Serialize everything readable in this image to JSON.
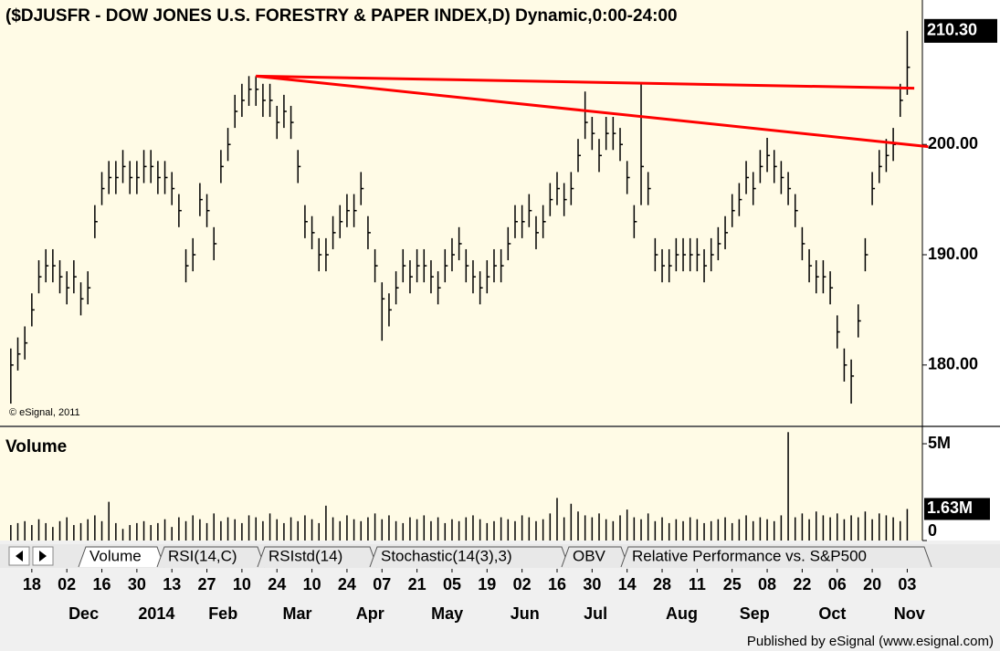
{
  "chart_data": [
    {
      "type": "ohlc",
      "title": "($DJUSFR - DOW JONES U.S. FORESTRY & PAPER INDEX,D) Dynamic,0:00-24:00",
      "watermark": "© eSignal, 2011",
      "color": "#000000",
      "high": [
        181.5,
        182.5,
        183.5,
        186.5,
        189.5,
        190.5,
        190.5,
        189.5,
        188.5,
        189.5,
        187.5,
        188.5,
        194.5,
        197.5,
        198.5,
        198.5,
        199.5,
        198.5,
        198.5,
        199.5,
        199.5,
        198.5,
        198.5,
        197.5,
        195.5,
        190.5,
        191.5,
        196.5,
        195.5,
        192.5,
        199.5,
        201.5,
        204.5,
        205.5,
        206.2,
        206.2,
        205.5,
        205.5,
        203.5,
        204.5,
        203.5,
        199.5,
        194.5,
        193.5,
        191.5,
        191.5,
        193.5,
        194.5,
        195.5,
        195.5,
        197.5,
        193.5,
        190.5,
        187.5,
        186.5,
        188.5,
        190.5,
        189.5,
        190.5,
        190.5,
        189.5,
        188.5,
        190.5,
        191.5,
        192.5,
        190.5,
        189.5,
        188.5,
        189.5,
        190.5,
        190.5,
        192.5,
        194.5,
        194.5,
        195.5,
        193.5,
        194.5,
        196.5,
        197.5,
        196.5,
        197.5,
        200.5,
        204.8,
        202.5,
        200.5,
        202.5,
        202.5,
        201.5,
        198.5,
        194.5,
        205.6,
        197.5,
        191.5,
        190.5,
        190.5,
        191.5,
        191.5,
        191.5,
        191.5,
        190.5,
        191.5,
        192.5,
        193.5,
        195.5,
        196.5,
        198.5,
        197.5,
        199.5,
        200.6,
        199.5,
        198.5,
        197.5,
        195.5,
        192.5,
        190.5,
        189.5,
        189.5,
        188.5,
        184.5,
        181.5,
        180.5,
        185.5,
        191.5,
        197.5,
        199.5,
        200.5,
        201.5,
        205.5,
        210.3
      ],
      "low": [
        176.5,
        179.5,
        180.5,
        183.5,
        186.5,
        187.5,
        187.5,
        186.5,
        185.5,
        186.5,
        184.5,
        185.5,
        191.5,
        194.5,
        195.5,
        195.5,
        196.5,
        195.5,
        195.5,
        196.5,
        196.5,
        195.5,
        195.5,
        194.5,
        192.5,
        187.5,
        188.5,
        193.5,
        192.5,
        189.5,
        196.5,
        198.5,
        201.5,
        202.5,
        203.5,
        203.5,
        202.5,
        202.5,
        200.5,
        201.5,
        200.5,
        196.5,
        191.5,
        190.5,
        188.5,
        188.5,
        190.5,
        191.5,
        192.5,
        192.5,
        194.5,
        190.5,
        187.5,
        182.2,
        183.5,
        185.5,
        187.5,
        186.5,
        187.5,
        187.5,
        186.5,
        185.5,
        187.5,
        188.5,
        189.5,
        187.5,
        186.5,
        185.5,
        186.5,
        187.5,
        187.5,
        189.5,
        191.5,
        191.5,
        192.5,
        190.5,
        191.5,
        193.5,
        194.5,
        193.5,
        194.5,
        197.5,
        200.5,
        199.5,
        197.5,
        199.5,
        199.5,
        198.5,
        195.5,
        191.5,
        194.5,
        194.5,
        188.5,
        187.5,
        187.5,
        188.5,
        188.5,
        188.5,
        188.5,
        187.5,
        188.5,
        189.5,
        190.5,
        192.5,
        193.5,
        195.5,
        194.5,
        196.5,
        197.5,
        196.5,
        195.5,
        194.5,
        192.5,
        189.5,
        187.5,
        186.5,
        186.5,
        185.5,
        181.5,
        178.5,
        176.5,
        182.5,
        188.5,
        194.5,
        196.5,
        197.5,
        198.5,
        202.5,
        204.5
      ],
      "close": [
        180,
        181,
        182,
        185,
        188,
        189,
        189,
        188,
        187,
        188,
        186,
        187,
        193,
        196,
        197,
        197,
        198,
        197,
        197,
        198,
        198,
        197,
        197,
        196,
        194,
        189,
        190,
        195,
        194,
        191,
        198,
        200,
        203,
        204,
        205,
        205,
        204,
        204,
        202,
        203,
        202,
        198,
        193,
        192,
        190,
        190,
        192,
        193,
        194,
        194,
        196,
        192,
        189,
        186,
        185,
        187,
        189,
        188,
        189,
        189,
        188,
        187,
        189,
        190,
        191,
        189,
        188,
        187,
        188,
        189,
        189,
        191,
        193,
        193,
        194,
        192,
        193,
        195,
        196,
        195,
        196,
        199,
        202,
        201,
        199,
        201,
        201,
        200,
        197,
        193,
        198,
        196,
        190,
        189,
        189,
        190,
        190,
        190,
        190,
        189,
        190,
        191,
        192,
        194,
        195,
        197,
        196,
        198,
        199,
        198,
        197,
        196,
        194,
        191,
        189,
        188,
        188,
        187,
        183,
        180,
        179,
        184,
        190,
        196,
        198,
        199,
        200,
        204,
        207
      ],
      "xlim": [
        -0.5,
        129.9
      ],
      "ylim": [
        174.6,
        213.1
      ],
      "yticks": [
        {
          "value": 180,
          "label": "180.00"
        },
        {
          "value": 190,
          "label": "190.00"
        },
        {
          "value": 200,
          "label": "200.00"
        }
      ],
      "last_price": {
        "value": 210.3,
        "label": "210.30"
      },
      "trendlines": [
        {
          "color": "#ff0000",
          "start": [
            35,
            206.2
          ],
          "end": [
            129,
            205.1
          ]
        },
        {
          "color": "#ff0000",
          "start": [
            35,
            206.2
          ],
          "end": [
            131,
            199.8
          ]
        }
      ],
      "xticks": [
        {
          "value": 3,
          "label": "18"
        },
        {
          "value": 8,
          "label": "02"
        },
        {
          "value": 13,
          "label": "16"
        },
        {
          "value": 18,
          "label": "30"
        },
        {
          "value": 23,
          "label": "13"
        },
        {
          "value": 28,
          "label": "27"
        },
        {
          "value": 33,
          "label": "10"
        },
        {
          "value": 38,
          "label": "24"
        },
        {
          "value": 43,
          "label": "10"
        },
        {
          "value": 48,
          "label": "24"
        },
        {
          "value": 53,
          "label": "07"
        },
        {
          "value": 58,
          "label": "21"
        },
        {
          "value": 63,
          "label": "05"
        },
        {
          "value": 68,
          "label": "19"
        },
        {
          "value": 73,
          "label": "02"
        },
        {
          "value": 78,
          "label": "16"
        },
        {
          "value": 83,
          "label": "30"
        },
        {
          "value": 88,
          "label": "14"
        },
        {
          "value": 93,
          "label": "28"
        },
        {
          "value": 98,
          "label": "11"
        },
        {
          "value": 103,
          "label": "25"
        },
        {
          "value": 108,
          "label": "08"
        },
        {
          "value": 113,
          "label": "22"
        },
        {
          "value": 118,
          "label": "06"
        },
        {
          "value": 123,
          "label": "20"
        },
        {
          "value": 128,
          "label": "03"
        }
      ],
      "month_labels": [
        {
          "value": 10.4,
          "label": "Dec"
        },
        {
          "value": 20.8,
          "label": "2014"
        },
        {
          "value": 30.3,
          "label": "Feb"
        },
        {
          "value": 40.9,
          "label": "Mar"
        },
        {
          "value": 51.3,
          "label": "Apr"
        },
        {
          "value": 62.3,
          "label": "May"
        },
        {
          "value": 73.4,
          "label": "Jun"
        },
        {
          "value": 83.5,
          "label": "Jul"
        },
        {
          "value": 95.8,
          "label": "Aug"
        },
        {
          "value": 106.2,
          "label": "Sep"
        },
        {
          "value": 117.3,
          "label": "Oct"
        },
        {
          "value": 128.3,
          "label": "Nov"
        }
      ]
    },
    {
      "type": "bar",
      "title": "Volume",
      "color": "#000000",
      "values": [
        0.8,
        0.9,
        1.0,
        0.8,
        1.1,
        0.9,
        0.7,
        1.0,
        1.2,
        0.8,
        0.9,
        1.1,
        1.3,
        1.0,
        2.0,
        0.9,
        0.6,
        0.8,
        0.9,
        1.0,
        0.8,
        0.9,
        1.1,
        0.7,
        1.2,
        1.0,
        1.3,
        1.1,
        0.9,
        1.4,
        1.0,
        1.2,
        1.1,
        0.9,
        1.3,
        1.2,
        1.0,
        1.4,
        1.1,
        0.9,
        1.2,
        1.0,
        1.3,
        1.1,
        0.9,
        1.8,
        1.2,
        1.0,
        1.3,
        1.1,
        1.0,
        1.2,
        1.4,
        1.1,
        1.3,
        1.0,
        0.9,
        1.2,
        1.1,
        1.3,
        1.0,
        1.2,
        0.9,
        1.1,
        1.0,
        1.2,
        1.3,
        1.1,
        0.9,
        1.0,
        1.2,
        1.1,
        1.0,
        1.3,
        1.2,
        1.0,
        1.1,
        1.4,
        2.2,
        1.2,
        1.9,
        1.5,
        1.3,
        1.2,
        1.4,
        1.1,
        1.0,
        1.3,
        1.6,
        1.2,
        1.1,
        1.4,
        1.0,
        1.2,
        0.9,
        1.1,
        1.0,
        1.2,
        1.1,
        0.9,
        1.0,
        1.1,
        1.2,
        0.9,
        1.1,
        1.3,
        1.0,
        1.2,
        1.1,
        1.0,
        1.3,
        5.6,
        1.2,
        1.4,
        1.1,
        1.5,
        1.3,
        1.2,
        1.4,
        1.1,
        1.3,
        1.2,
        1.5,
        1.1,
        1.4,
        1.3,
        1.2,
        1.0,
        1.63
      ],
      "xlim": [
        -0.5,
        129.9
      ],
      "ylim": [
        0,
        5.85
      ],
      "yticks": [
        {
          "value": 5,
          "label": "5M"
        },
        0
      ],
      "last_value": {
        "value": 1.63,
        "label": "1.63M"
      }
    }
  ],
  "tabs": [
    "Volume",
    "RSI(14,C)",
    "RSIstd(14)",
    "Stochastic(14(3),3)",
    "OBV",
    "Relative Performance vs. S&P500"
  ],
  "footer": "Published by eSignal (www.esignal.com)"
}
